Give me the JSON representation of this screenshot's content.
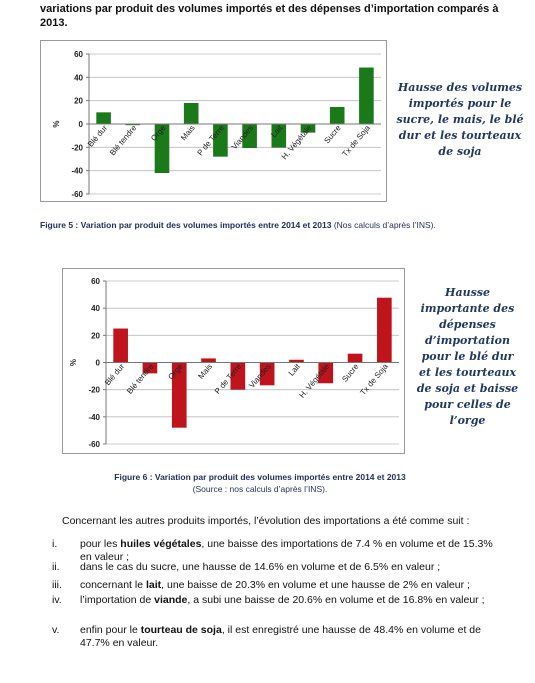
{
  "intro_lines": [
    "variations par produit des volumes importés et des dépenses d’importation comparés à",
    "2013."
  ],
  "chart_data": [
    {
      "type": "bar",
      "y_label": "%",
      "categories": [
        "Blé dur",
        "Blé tendre",
        "Orge",
        "Mais",
        "P de Terre",
        "Viandes",
        "Lait",
        "H. Végétale",
        "Sucre",
        "Tx de Soja"
      ],
      "values": [
        10,
        -1,
        -42,
        18,
        -28,
        -20.6,
        -20.3,
        -7.4,
        14.6,
        48.4
      ],
      "color": "#1a7a1a",
      "ylim": [
        -60,
        60
      ],
      "yticks": [
        -60,
        -40,
        -20,
        0,
        20,
        40,
        60
      ],
      "grid": true
    },
    {
      "type": "bar",
      "y_label": "%",
      "categories": [
        "Blé dur",
        "Blé tendre",
        "Orge",
        "Mais",
        "P de Terre",
        "Viandes",
        "Lait",
        "H. Végétale",
        "Sucre",
        "Tx de Soja"
      ],
      "values": [
        25,
        -8,
        -48,
        3,
        -20,
        -16.8,
        2,
        -15.3,
        6.5,
        47.7
      ],
      "color": "#c0141c",
      "ylim": [
        -60,
        60
      ],
      "yticks": [
        -60,
        -40,
        -20,
        0,
        20,
        40,
        60
      ],
      "grid": true
    }
  ],
  "side_notes": [
    [
      "Hausse des volumes",
      "importés pour le",
      "sucre, le mais, le blé",
      "dur et les tourteaux",
      "de soja"
    ],
    [
      "Hausse",
      "importante des",
      "dépenses",
      "d’importation",
      "pour le blé dur",
      "et les tourteaux",
      "de soja et baisse",
      "pour celles de",
      "l’orge"
    ]
  ],
  "caption5": {
    "bold": "Figure 5 : Variation par produit des volumes importés entre 2014 et 2013",
    "normal": " (Nos calculs d’après l’INS)."
  },
  "caption6": {
    "line1": "Figure 6 : Variation par produit des volumes importés entre 2014 et 2013",
    "line2": "(Source : nos calculs d’après l’INS)."
  },
  "paragraph": "Concernant les autres produits importés, l’évolution des importations a été comme suit :",
  "items": [
    {
      "marker": "i.",
      "a": "pour les ",
      "b": "huiles végétales",
      "c": ", une baisse des importations de 7.4 % en volume et de 15.3% en valeur ;"
    },
    {
      "marker": "ii.",
      "a": "dans le cas du sucre, une hausse de 14.6% en volume et de 6.5% en valeur ;"
    },
    {
      "marker": "iii.",
      "a": "concernant le ",
      "b": "lait",
      "c": ", une baisse de 20.3% en volume et une hausse de 2% en valeur ;"
    },
    {
      "marker": "iv.",
      "a": "l’importation de ",
      "b": "viande",
      "c": ", a subi une baisse de 20.6% en volume et de 16.8% en valeur ;"
    },
    {
      "marker": "v.",
      "a": "enfin pour le ",
      "b": "tourteau de soja",
      "c": ", il est enregistré une hausse de 48.4% en volume et de 47.7% en valeur."
    }
  ]
}
